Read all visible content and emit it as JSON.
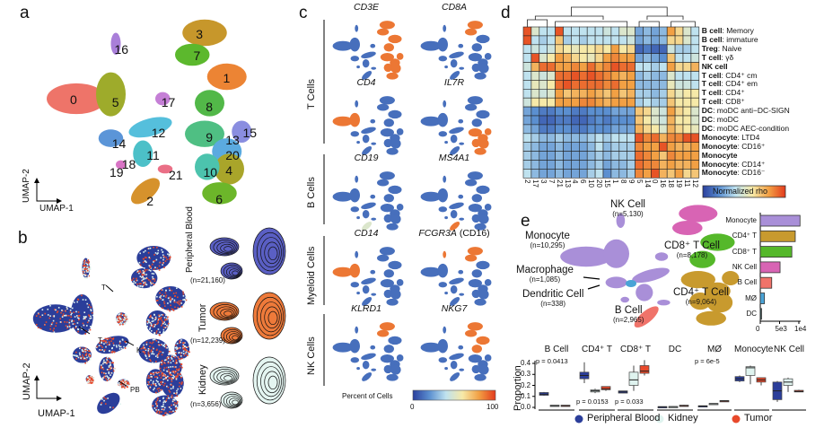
{
  "panels": {
    "a": "a",
    "b": "b",
    "c": "c",
    "d": "d",
    "e": "e"
  },
  "colors": {
    "blue": "#2b3e9a",
    "light": "#dff3ef",
    "red": "#e8492b",
    "grad": [
      "#2a3f9d",
      "#5b8fd0",
      "#bfe2ef",
      "#f6e9a8",
      "#f2a044",
      "#e33a1c"
    ]
  },
  "panel_a": {
    "axis_x": "UMAP-1",
    "axis_y": "UMAP-2",
    "clusters": [
      {
        "id": "0",
        "color": "#ee7469"
      },
      {
        "id": "1",
        "color": "#ec8434"
      },
      {
        "id": "2",
        "color": "#d6922c"
      },
      {
        "id": "3",
        "color": "#c7972b"
      },
      {
        "id": "4",
        "color": "#a9a52a"
      },
      {
        "id": "5",
        "color": "#9eab2b"
      },
      {
        "id": "6",
        "color": "#6cb62a"
      },
      {
        "id": "7",
        "color": "#5cb82d"
      },
      {
        "id": "8",
        "color": "#52b848"
      },
      {
        "id": "9",
        "color": "#4fbf83"
      },
      {
        "id": "10",
        "color": "#4cc3ad"
      },
      {
        "id": "11",
        "color": "#4cc0c8"
      },
      {
        "id": "12",
        "color": "#55bfdc"
      },
      {
        "id": "13",
        "color": "#5baae0"
      },
      {
        "id": "14",
        "color": "#5b95d8"
      },
      {
        "id": "15",
        "color": "#8a8ee0"
      },
      {
        "id": "16",
        "color": "#a97fd9"
      },
      {
        "id": "17",
        "color": "#c57fd6"
      },
      {
        "id": "18",
        "color": "#d874c5"
      },
      {
        "id": "19",
        "color": "#e06db0"
      },
      {
        "id": "20",
        "color": "#e46c98"
      },
      {
        "id": "21",
        "color": "#ea6f86"
      }
    ]
  },
  "panel_b": {
    "axis_x": "UMAP-1",
    "axis_y": "UMAP-2",
    "arrows": [
      "T",
      "T",
      "K",
      "PB"
    ],
    "tissues": [
      {
        "name": "Peripheral Blood",
        "n": "(n=21,160)",
        "color": "#5a5fc4"
      },
      {
        "name": "Tumor",
        "n": "(n=12,239)",
        "color": "#ee7a3a"
      },
      {
        "name": "Kidney",
        "n": "(n=3,656)",
        "color": "#e4f5f1"
      }
    ]
  },
  "panel_c": {
    "groups": [
      "T Cells",
      "B Cells",
      "Myeloid Cells",
      "NK Cells"
    ],
    "genes": [
      {
        "name": "CD3E",
        "high": [
          "T"
        ]
      },
      {
        "name": "CD8A",
        "high": [
          "top"
        ]
      },
      {
        "name": "CD4",
        "high": [
          "mono"
        ]
      },
      {
        "name": "IL7R",
        "high": [
          "bottom"
        ]
      },
      {
        "name": "CD19",
        "high": [
          "Bweak"
        ]
      },
      {
        "name": "MS4A1",
        "high": [
          "B"
        ]
      },
      {
        "name": "CD14",
        "high": [
          "mono"
        ]
      },
      {
        "name": "FCGR3A",
        "suffix": " (CD16)",
        "high": [
          "stalk",
          "top"
        ]
      },
      {
        "name": "KLRD1",
        "high": [
          "top"
        ]
      },
      {
        "name": "NKG7",
        "high": [
          "top",
          "upper"
        ]
      }
    ],
    "colorbar": {
      "label": "Percent of Cells",
      "min": "0",
      "max": "100"
    }
  },
  "chart_data": [
    {
      "type": "heatmap",
      "legend": "Normalized rho",
      "columns": [
        "2",
        "17",
        "3",
        "7",
        "21",
        "13",
        "4",
        "6",
        "10",
        "20",
        "15",
        "1",
        "8",
        "9",
        "5",
        "14",
        "0",
        "16",
        "18",
        "19",
        "11",
        "12"
      ],
      "rows": [
        {
          "bold": "B cell",
          "rest": ": Memory",
          "values": [
            0.95,
            0.5,
            0.4,
            0.4,
            0.95,
            0.4,
            0.4,
            0.4,
            0.4,
            0.4,
            0.45,
            0.4,
            0.5,
            0.5,
            0.25,
            0.3,
            0.25,
            0.3,
            0.8,
            0.65,
            0.5,
            0.4
          ]
        },
        {
          "bold": "B cell",
          "rest": ": immature",
          "values": [
            0.95,
            0.4,
            0.35,
            0.4,
            0.7,
            0.35,
            0.4,
            0.35,
            0.4,
            0.4,
            0.4,
            0.4,
            0.4,
            0.45,
            0.25,
            0.3,
            0.25,
            0.3,
            0.65,
            0.65,
            0.5,
            0.4
          ]
        },
        {
          "bold": "Treg",
          "rest": ": Naive",
          "values": [
            0.4,
            0.45,
            0.4,
            0.45,
            0.65,
            0.6,
            0.55,
            0.6,
            0.6,
            0.65,
            0.6,
            0.8,
            0.6,
            0.65,
            0.1,
            0.15,
            0.1,
            0.1,
            0.45,
            0.35,
            0.35,
            0.4
          ]
        },
        {
          "bold": "T cell",
          "rest": ": γδ",
          "values": [
            0.4,
            0.95,
            0.5,
            0.6,
            0.8,
            0.75,
            0.65,
            0.6,
            0.55,
            0.65,
            0.8,
            0.85,
            0.8,
            0.8,
            0.25,
            0.3,
            0.25,
            0.2,
            0.7,
            0.4,
            0.4,
            0.45
          ]
        },
        {
          "bold": "NK cell",
          "rest": "",
          "values": [
            0.45,
            0.75,
            0.9,
            0.9,
            0.8,
            0.8,
            0.85,
            0.8,
            0.9,
            0.8,
            0.85,
            0.95,
            0.9,
            0.9,
            0.4,
            0.4,
            0.35,
            0.4,
            0.8,
            0.65,
            0.65,
            0.75
          ]
        },
        {
          "bold": "T cell",
          "rest": ": CD4⁺ cm",
          "values": [
            0.4,
            0.5,
            0.45,
            0.5,
            0.9,
            0.9,
            0.95,
            0.9,
            0.95,
            0.9,
            0.85,
            0.8,
            0.75,
            0.8,
            0.3,
            0.35,
            0.3,
            0.3,
            0.5,
            0.4,
            0.4,
            0.4
          ]
        },
        {
          "bold": "T cell",
          "rest": ": CD4⁺ em",
          "values": [
            0.4,
            0.55,
            0.5,
            0.6,
            0.9,
            0.95,
            0.9,
            0.9,
            0.9,
            0.9,
            0.85,
            0.9,
            0.8,
            0.8,
            0.3,
            0.3,
            0.3,
            0.3,
            0.55,
            0.45,
            0.45,
            0.4
          ]
        },
        {
          "bold": "T cell",
          "rest": ": CD4⁺",
          "values": [
            0.4,
            0.5,
            0.45,
            0.5,
            0.8,
            0.7,
            0.75,
            0.75,
            0.8,
            0.75,
            0.7,
            0.8,
            0.7,
            0.75,
            0.35,
            0.35,
            0.3,
            0.35,
            0.65,
            0.55,
            0.6,
            0.6
          ]
        },
        {
          "bold": "T cell",
          "rest": ": CD8⁺",
          "values": [
            0.45,
            0.6,
            0.6,
            0.6,
            0.8,
            0.8,
            0.8,
            0.85,
            0.85,
            0.8,
            0.75,
            0.8,
            0.8,
            0.8,
            0.35,
            0.4,
            0.35,
            0.35,
            0.7,
            0.6,
            0.6,
            0.6
          ]
        },
        {
          "bold": "DC",
          "rest": ": moDC anti−DC-SIGN",
          "values": [
            0.25,
            0.2,
            0.15,
            0.15,
            0.2,
            0.2,
            0.15,
            0.15,
            0.2,
            0.2,
            0.2,
            0.25,
            0.25,
            0.25,
            0.7,
            0.65,
            0.5,
            0.45,
            0.8,
            0.65,
            0.6,
            0.5
          ]
        },
        {
          "bold": "DC",
          "rest": ": moDC",
          "values": [
            0.25,
            0.2,
            0.1,
            0.1,
            0.15,
            0.15,
            0.1,
            0.1,
            0.15,
            0.2,
            0.15,
            0.2,
            0.2,
            0.2,
            0.7,
            0.6,
            0.5,
            0.45,
            0.75,
            0.6,
            0.6,
            0.5
          ]
        },
        {
          "bold": "DC",
          "rest": ": moDC AEC-condition",
          "values": [
            0.3,
            0.25,
            0.15,
            0.15,
            0.2,
            0.2,
            0.15,
            0.15,
            0.2,
            0.2,
            0.2,
            0.25,
            0.25,
            0.25,
            0.75,
            0.65,
            0.6,
            0.5,
            0.75,
            0.65,
            0.6,
            0.55
          ]
        },
        {
          "bold": "Monocyte",
          "rest": ": LTD4",
          "values": [
            0.4,
            0.35,
            0.3,
            0.3,
            0.35,
            0.3,
            0.3,
            0.3,
            0.35,
            0.4,
            0.35,
            0.4,
            0.4,
            0.4,
            0.95,
            0.85,
            0.9,
            0.75,
            0.85,
            0.85,
            0.95,
            0.95
          ]
        },
        {
          "bold": "Monocyte",
          "rest": ": CD16⁺",
          "values": [
            0.35,
            0.3,
            0.25,
            0.25,
            0.3,
            0.25,
            0.25,
            0.25,
            0.3,
            0.4,
            0.3,
            0.35,
            0.35,
            0.35,
            0.85,
            0.8,
            0.8,
            0.95,
            0.8,
            0.75,
            0.75,
            0.8
          ]
        },
        {
          "bold": "Monocyte",
          "rest": "",
          "values": [
            0.35,
            0.3,
            0.25,
            0.25,
            0.3,
            0.25,
            0.25,
            0.25,
            0.3,
            0.35,
            0.3,
            0.35,
            0.35,
            0.35,
            0.9,
            0.85,
            0.8,
            0.7,
            0.85,
            0.8,
            0.8,
            0.8
          ]
        },
        {
          "bold": "Monocyte",
          "rest": ": CD14⁺",
          "values": [
            0.35,
            0.3,
            0.25,
            0.25,
            0.3,
            0.25,
            0.25,
            0.25,
            0.3,
            0.35,
            0.25,
            0.3,
            0.3,
            0.35,
            0.9,
            0.85,
            0.85,
            0.75,
            0.8,
            0.75,
            0.75,
            0.8
          ]
        },
        {
          "bold": "Monocyte",
          "rest": ": CD16⁻",
          "values": [
            0.4,
            0.3,
            0.25,
            0.25,
            0.3,
            0.25,
            0.25,
            0.25,
            0.35,
            0.4,
            0.2,
            0.3,
            0.3,
            0.35,
            0.85,
            0.8,
            0.95,
            0.75,
            0.7,
            0.8,
            0.65,
            0.7
          ]
        }
      ]
    },
    {
      "type": "bar",
      "orientation": "horizontal",
      "categories": [
        "Monocyte",
        "CD4⁺ T",
        "CD8⁺ T",
        "NK Cell",
        "B Cell",
        "MØ",
        "DC"
      ],
      "values": [
        10295,
        9064,
        8178,
        5130,
        2965,
        1085,
        338
      ],
      "colors": [
        "#a98fd8",
        "#c89a2e",
        "#55b82a",
        "#d864b4",
        "#f0736a",
        "#4aa3d6",
        "#2f4f4f"
      ],
      "xticks": [
        "0",
        "5e3",
        "1e4"
      ],
      "xlim": [
        0,
        11000
      ]
    },
    {
      "type": "box",
      "ylabel": "Proportion",
      "ylim": [
        0,
        0.43
      ],
      "yticks": [
        "0.0",
        "0.1",
        "0.2",
        "0.3",
        "0.4"
      ],
      "legend": [
        {
          "name": "Peripheral Blood",
          "color": "#2b3e9a"
        },
        {
          "name": "Kidney",
          "color": "#dff3ef"
        },
        {
          "name": "Tumor",
          "color": "#e8492b"
        }
      ],
      "groups": [
        {
          "name": "B Cell",
          "p": "p = 0.0413",
          "p_pos": "top",
          "boxes": [
            [
              0.105,
              0.11,
              0.12,
              0.135,
              0.14
            ],
            [
              0.008,
              0.01,
              0.015,
              0.02,
              0.02
            ],
            [
              0.008,
              0.01,
              0.015,
              0.02,
              0.02
            ]
          ]
        },
        {
          "name": "CD4⁺ T",
          "p": "p = 0.0153",
          "p_pos": "bottom",
          "boxes": [
            [
              0.22,
              0.26,
              0.29,
              0.32,
              0.41
            ],
            [
              0.13,
              0.14,
              0.15,
              0.16,
              0.17
            ],
            [
              0.15,
              0.16,
              0.17,
              0.19,
              0.19
            ]
          ]
        },
        {
          "name": "CD8⁺ T",
          "p": "p = 0.033",
          "p_pos": "bottom",
          "boxes": [
            [
              0.13,
              0.13,
              0.14,
              0.15,
              0.15
            ],
            [
              0.15,
              0.2,
              0.25,
              0.32,
              0.38
            ],
            [
              0.29,
              0.31,
              0.33,
              0.38,
              0.43
            ]
          ]
        },
        {
          "name": "DC",
          "p": "",
          "p_pos": "",
          "boxes": [
            [
              0.003,
              0.004,
              0.005,
              0.007,
              0.008
            ],
            [
              0.004,
              0.005,
              0.006,
              0.008,
              0.009
            ],
            [
              0.008,
              0.01,
              0.015,
              0.02,
              0.022
            ]
          ]
        },
        {
          "name": "MØ",
          "p": "p = 6e-5",
          "p_pos": "top",
          "boxes": [
            [
              0.008,
              0.01,
              0.012,
              0.015,
              0.016
            ],
            [
              0.028,
              0.03,
              0.033,
              0.036,
              0.037
            ],
            [
              0.053,
              0.055,
              0.058,
              0.062,
              0.063
            ]
          ]
        },
        {
          "name": "Monocyte",
          "p": "",
          "p_pos": "",
          "boxes": [
            [
              0.23,
              0.24,
              0.26,
              0.28,
              0.29
            ],
            [
              0.21,
              0.29,
              0.36,
              0.37,
              0.38
            ],
            [
              0.2,
              0.23,
              0.25,
              0.27,
              0.27
            ]
          ]
        },
        {
          "name": "NK Cell",
          "p": "",
          "p_pos": "",
          "boxes": [
            [
              0.05,
              0.07,
              0.15,
              0.23,
              0.24
            ],
            [
              0.14,
              0.2,
              0.23,
              0.26,
              0.27
            ],
            [
              0.14,
              0.14,
              0.145,
              0.155,
              0.16
            ]
          ]
        }
      ]
    }
  ],
  "panel_e": {
    "celltypes": [
      {
        "name": "NK Cell",
        "n": "(n=5,130)"
      },
      {
        "name": "Monocyte",
        "n": "(n=10,295)"
      },
      {
        "name": "CD8⁺ T Cell",
        "n": "(n=8,178)"
      },
      {
        "name": "Macrophage",
        "n": "(n=1,085)"
      },
      {
        "name": "Dendritic Cell",
        "n": "(n=338)"
      },
      {
        "name": "CD4⁺ T Cell",
        "n": "(n=9,064)"
      },
      {
        "name": "B Cell",
        "n": "(n=2,965)"
      }
    ]
  }
}
